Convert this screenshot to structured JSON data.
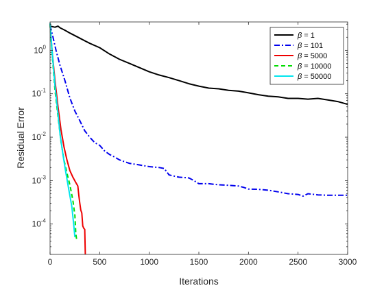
{
  "chart_data": {
    "type": "line",
    "xlabel": "Iterations",
    "ylabel": "Residual Error",
    "xlim": [
      0,
      3000
    ],
    "ylim": [
      2e-05,
      4.5
    ],
    "yscale": "log",
    "grid": false,
    "legend_position": "top-right",
    "x_ticks": [
      0,
      500,
      1000,
      1500,
      2000,
      2500,
      3000
    ],
    "y_ticks": [
      0.0001,
      0.001,
      0.01,
      0.1,
      1
    ],
    "y_tick_labels": [
      {
        "base": "10",
        "exp": "-4"
      },
      {
        "base": "10",
        "exp": "-3"
      },
      {
        "base": "10",
        "exp": "-2"
      },
      {
        "base": "10",
        "exp": "-1"
      },
      {
        "base": "10",
        "exp": "0"
      }
    ],
    "series": [
      {
        "name": "β = 1",
        "label_symbol": "β",
        "label_value": "= 1",
        "color": "#000000",
        "dash": "solid",
        "points": [
          [
            0,
            3.6
          ],
          [
            50,
            3.4
          ],
          [
            80,
            3.6
          ],
          [
            100,
            3.3
          ],
          [
            150,
            2.9
          ],
          [
            200,
            2.5
          ],
          [
            300,
            1.9
          ],
          [
            400,
            1.45
          ],
          [
            500,
            1.15
          ],
          [
            600,
            0.82
          ],
          [
            700,
            0.62
          ],
          [
            800,
            0.5
          ],
          [
            900,
            0.4
          ],
          [
            1000,
            0.32
          ],
          [
            1100,
            0.27
          ],
          [
            1200,
            0.235
          ],
          [
            1300,
            0.2
          ],
          [
            1400,
            0.17
          ],
          [
            1500,
            0.15
          ],
          [
            1600,
            0.135
          ],
          [
            1700,
            0.13
          ],
          [
            1800,
            0.12
          ],
          [
            1900,
            0.115
          ],
          [
            2000,
            0.105
          ],
          [
            2100,
            0.095
          ],
          [
            2200,
            0.088
          ],
          [
            2300,
            0.085
          ],
          [
            2400,
            0.078
          ],
          [
            2500,
            0.078
          ],
          [
            2600,
            0.075
          ],
          [
            2700,
            0.078
          ],
          [
            2800,
            0.072
          ],
          [
            2900,
            0.066
          ],
          [
            3000,
            0.057
          ]
        ]
      },
      {
        "name": "β = 101",
        "label_symbol": "β",
        "label_value": "= 101",
        "color": "#0000ee",
        "dash": "dashdot",
        "points": [
          [
            0,
            3.8
          ],
          [
            30,
            2.0
          ],
          [
            60,
            1.0
          ],
          [
            100,
            0.45
          ],
          [
            150,
            0.2
          ],
          [
            200,
            0.08
          ],
          [
            250,
            0.04
          ],
          [
            300,
            0.024
          ],
          [
            350,
            0.014
          ],
          [
            400,
            0.01
          ],
          [
            450,
            0.0075
          ],
          [
            500,
            0.0065
          ],
          [
            550,
            0.0048
          ],
          [
            600,
            0.004
          ],
          [
            650,
            0.0035
          ],
          [
            700,
            0.003
          ],
          [
            800,
            0.0025
          ],
          [
            900,
            0.0023
          ],
          [
            1000,
            0.0021
          ],
          [
            1100,
            0.002
          ],
          [
            1150,
            0.0019
          ],
          [
            1200,
            0.00135
          ],
          [
            1300,
            0.0012
          ],
          [
            1400,
            0.00115
          ],
          [
            1450,
            0.001
          ],
          [
            1500,
            0.00085
          ],
          [
            1600,
            0.00085
          ],
          [
            1700,
            0.0008
          ],
          [
            1800,
            0.00078
          ],
          [
            1900,
            0.00075
          ],
          [
            1950,
            0.0007
          ],
          [
            2000,
            0.00064
          ],
          [
            2100,
            0.00063
          ],
          [
            2200,
            0.0006
          ],
          [
            2300,
            0.00055
          ],
          [
            2400,
            0.0005
          ],
          [
            2500,
            0.00048
          ],
          [
            2550,
            0.00044
          ],
          [
            2600,
            0.0005
          ],
          [
            2700,
            0.00047
          ],
          [
            2800,
            0.00046
          ],
          [
            3000,
            0.00046
          ]
        ]
      },
      {
        "name": "β = 5000",
        "label_symbol": "β",
        "label_value": "= 5000",
        "color": "#ee0000",
        "dash": "solid",
        "points": [
          [
            0,
            4.0
          ],
          [
            20,
            1.0
          ],
          [
            50,
            0.2
          ],
          [
            80,
            0.05
          ],
          [
            110,
            0.015
          ],
          [
            140,
            0.006
          ],
          [
            170,
            0.003
          ],
          [
            200,
            0.0017
          ],
          [
            230,
            0.0012
          ],
          [
            260,
            0.0009
          ],
          [
            280,
            0.00075
          ],
          [
            290,
            0.00045
          ],
          [
            300,
            0.0003
          ],
          [
            310,
            0.00021
          ],
          [
            320,
            0.00018
          ],
          [
            330,
            9e-05
          ],
          [
            340,
            8e-05
          ],
          [
            350,
            7.5e-05
          ],
          [
            355,
            2e-05
          ]
        ]
      },
      {
        "name": "β = 10000",
        "label_symbol": "β",
        "label_value": "= 10000",
        "color": "#00dd00",
        "dash": "dashed",
        "points": [
          [
            0,
            4.0
          ],
          [
            20,
            0.9
          ],
          [
            50,
            0.12
          ],
          [
            80,
            0.03
          ],
          [
            110,
            0.008
          ],
          [
            140,
            0.003
          ],
          [
            170,
            0.0015
          ],
          [
            200,
            0.0008
          ],
          [
            230,
            0.00035
          ],
          [
            250,
            0.00016
          ],
          [
            260,
            6e-05
          ],
          [
            270,
            4e-05
          ]
        ]
      },
      {
        "name": "β = 50000",
        "label_symbol": "β",
        "label_value": "= 50000",
        "color": "#00e5ee",
        "dash": "solid",
        "points": [
          [
            0,
            4.2
          ],
          [
            20,
            1.0
          ],
          [
            50,
            0.15
          ],
          [
            80,
            0.035
          ],
          [
            100,
            0.012
          ],
          [
            130,
            0.004
          ],
          [
            160,
            0.0015
          ],
          [
            190,
            0.0006
          ],
          [
            220,
            0.00025
          ],
          [
            240,
            9e-05
          ],
          [
            250,
            5e-05
          ]
        ]
      }
    ]
  }
}
